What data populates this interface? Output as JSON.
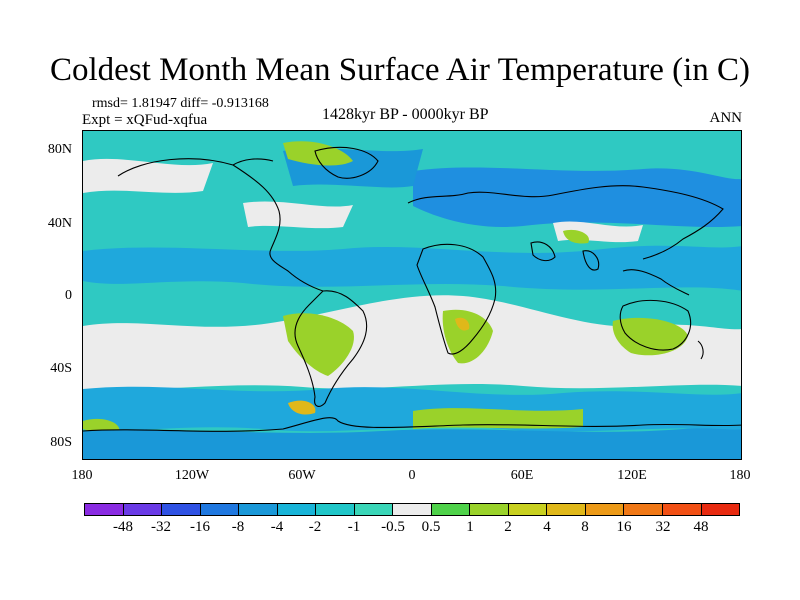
{
  "title": "Coldest Month Mean Surface Air Temperature (in C)",
  "stats": "rmsd= 1.81947  diff= -0.913168",
  "experiment": "Expt = xQFud-xqfua",
  "period": "1428kyr BP - 0000kyr BP",
  "season": "ANN",
  "axes": {
    "y_ticks": [
      "80N",
      "40N",
      "0",
      "40S",
      "80S"
    ],
    "x_ticks": [
      "180",
      "120W",
      "60W",
      "0",
      "60E",
      "120E",
      "180"
    ]
  },
  "colorbar": {
    "labels": [
      "-48",
      "-32",
      "-16",
      "-8",
      "-4",
      "-2",
      "-1",
      "-0.5",
      "0.5",
      "1",
      "2",
      "4",
      "8",
      "16",
      "32",
      "48"
    ],
    "colors": [
      "#8a2be2",
      "#6a3ae6",
      "#2f52e4",
      "#1f78e0",
      "#1a98d8",
      "#18b4d8",
      "#20c6c8",
      "#3ad6b8",
      "#ececec",
      "#4fd24a",
      "#9ad22a",
      "#c8d020",
      "#e0b81a",
      "#ec9a18",
      "#f07816",
      "#f25014",
      "#e82a10"
    ]
  }
}
